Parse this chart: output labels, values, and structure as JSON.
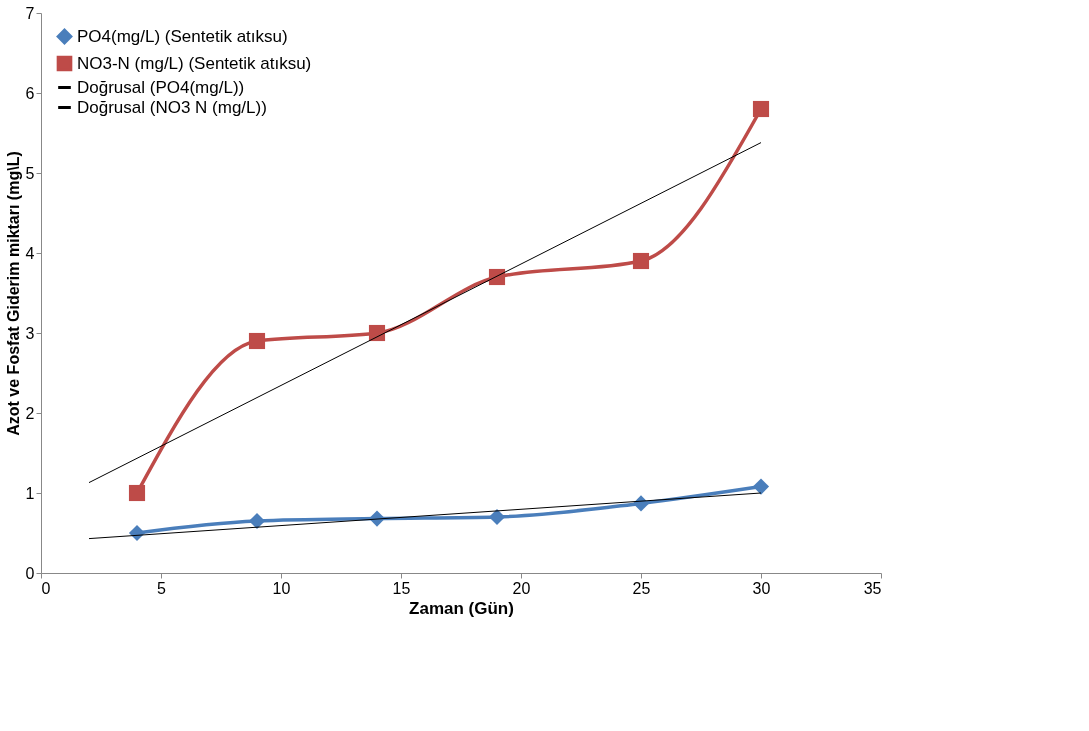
{
  "chart_data": {
    "type": "line",
    "xlabel": "Zaman (Gün)",
    "ylabel": "Azot ve Fosfat Giderim miktarı (mg\\L)",
    "xlim": [
      0,
      35
    ],
    "xticks": [
      0,
      5,
      10,
      15,
      20,
      25,
      30,
      35
    ],
    "ylim": [
      0,
      7
    ],
    "yticks": [
      0,
      1,
      2,
      3,
      4,
      5,
      6,
      7
    ],
    "grid": false,
    "legend": "top left",
    "series": [
      {
        "name": "PO4(mg/L)        (Sentetik atıksu)",
        "color": "#4a7ebb",
        "marker": "diamond",
        "x": [
          4,
          9,
          14,
          19,
          25,
          30
        ],
        "values": [
          0.5,
          0.65,
          0.68,
          0.7,
          0.87,
          1.08
        ]
      },
      {
        "name": "NO3-N (mg/L)  (Sentetik atıksu)",
        "color": "#be4b48",
        "marker": "square",
        "x": [
          4,
          9,
          14,
          19,
          25,
          30
        ],
        "values": [
          1.0,
          2.9,
          3.0,
          3.7,
          3.9,
          5.8
        ]
      },
      {
        "name": "Doğrusal (PO4(mg/L))",
        "color": "#000000",
        "marker": "none",
        "x": [
          2,
          30
        ],
        "values": [
          0.43,
          1.0
        ]
      },
      {
        "name": "Doğrusal (NO3 N (mg/L))",
        "color": "#000000",
        "marker": "none",
        "x": [
          2,
          30
        ],
        "values": [
          1.13,
          5.38
        ]
      }
    ]
  }
}
